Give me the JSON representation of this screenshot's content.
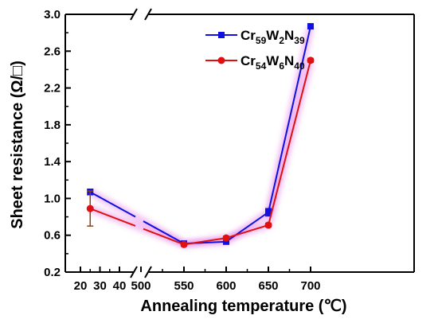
{
  "chart_data": {
    "type": "line",
    "xlabel": "Annealing temperature (℃)",
    "ylabel": "Sheet resistance (Ω/□)",
    "x_ticks": [
      "20",
      "30",
      "40",
      "500",
      "550",
      "600",
      "650",
      "700"
    ],
    "y_ticks": [
      "0.2",
      "0.6",
      "1.0",
      "1.4",
      "1.8",
      "2.2",
      "2.6",
      "3.0"
    ],
    "ylim": [
      0.2,
      3.0
    ],
    "axis_break": "between 40 and 500",
    "legend_position": "top-center",
    "series": [
      {
        "name": "Cr59W2N39",
        "name_parts": {
          "base1": "Cr",
          "sub1": "59",
          "base2": "W",
          "sub2": "2",
          "base3": "N",
          "sub3": "39"
        },
        "color": "#1010e0",
        "marker": "square",
        "x": [
          25,
          550,
          600,
          650,
          700
        ],
        "y": [
          1.07,
          0.51,
          0.53,
          0.85,
          2.87
        ],
        "error": [
          0.03,
          0.01,
          0.02,
          0.04,
          0.02
        ]
      },
      {
        "name": "Cr54W6N40",
        "name_parts": {
          "base1": "Cr",
          "sub1": "54",
          "base2": "W",
          "sub2": "6",
          "base3": "N",
          "sub3": "40"
        },
        "color": "#e01010",
        "marker": "circle",
        "x": [
          25,
          550,
          600,
          650,
          700
        ],
        "y": [
          0.89,
          0.5,
          0.57,
          0.71,
          2.5
        ],
        "error": [
          0.19,
          0.01,
          0.02,
          0.02,
          0.02
        ]
      }
    ]
  }
}
